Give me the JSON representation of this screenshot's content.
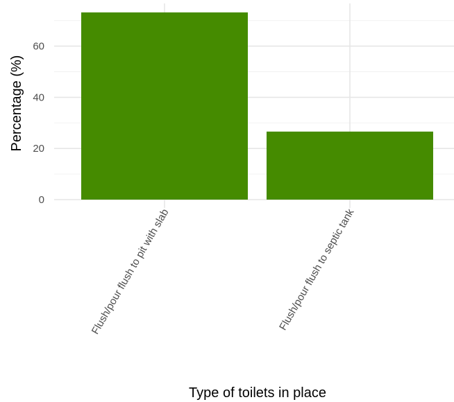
{
  "chart_data": {
    "type": "bar",
    "categories": [
      "Flush/pour flush to pit with slab",
      "Flush/pour flush to septic tank"
    ],
    "values": [
      73.2,
      26.6
    ],
    "title": "",
    "xlabel": "Type of toilets in place",
    "ylabel": "Percentage (%)",
    "ylim": [
      0,
      76
    ],
    "yticks": [
      0,
      20,
      40,
      60
    ],
    "grid": true,
    "bar_color": "#458B00",
    "legend": "none"
  }
}
